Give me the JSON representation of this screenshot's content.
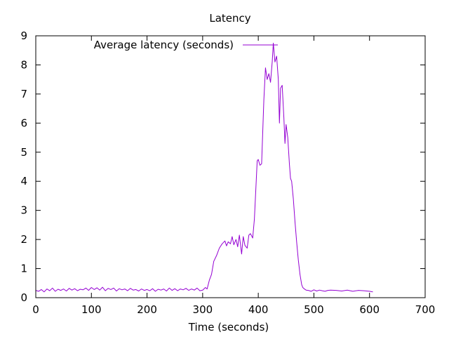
{
  "chart_data": {
    "type": "line",
    "title": "Latency",
    "xlabel": "Time (seconds)",
    "ylabel": "",
    "xlim": [
      0,
      700
    ],
    "ylim": [
      0,
      9
    ],
    "xticks": [
      0,
      100,
      200,
      300,
      400,
      500,
      600,
      700
    ],
    "yticks": [
      0,
      1,
      2,
      3,
      4,
      5,
      6,
      7,
      8,
      9
    ],
    "grid": false,
    "legend_position": "top-left",
    "series": [
      {
        "name": "Average latency (seconds)",
        "color": "#9400d3",
        "x": [
          0,
          5,
          10,
          15,
          20,
          25,
          30,
          35,
          40,
          45,
          50,
          55,
          60,
          65,
          70,
          75,
          80,
          85,
          90,
          95,
          100,
          105,
          110,
          115,
          120,
          125,
          130,
          135,
          140,
          145,
          150,
          155,
          160,
          165,
          170,
          175,
          180,
          185,
          190,
          195,
          200,
          205,
          210,
          215,
          220,
          225,
          230,
          235,
          240,
          245,
          250,
          255,
          260,
          265,
          270,
          275,
          280,
          285,
          290,
          295,
          300,
          305,
          308,
          312,
          316,
          320,
          325,
          330,
          335,
          340,
          343,
          346,
          350,
          353,
          356,
          360,
          363,
          366,
          370,
          373,
          376,
          380,
          383,
          386,
          390,
          393,
          396,
          398,
          400,
          403,
          406,
          410,
          413,
          416,
          419,
          422,
          425,
          427,
          430,
          433,
          436,
          438,
          440,
          443,
          446,
          448,
          450,
          453,
          456,
          458,
          460,
          463,
          466,
          469,
          472,
          475,
          478,
          480,
          483,
          486,
          490,
          495,
          500,
          505,
          510,
          515,
          520,
          525,
          530,
          540,
          550,
          560,
          570,
          580,
          590,
          600,
          606
        ],
        "y": [
          0.25,
          0.22,
          0.28,
          0.2,
          0.3,
          0.24,
          0.33,
          0.22,
          0.29,
          0.25,
          0.3,
          0.23,
          0.32,
          0.26,
          0.31,
          0.24,
          0.29,
          0.27,
          0.33,
          0.25,
          0.35,
          0.28,
          0.34,
          0.26,
          0.36,
          0.24,
          0.32,
          0.28,
          0.33,
          0.23,
          0.31,
          0.27,
          0.3,
          0.24,
          0.32,
          0.26,
          0.28,
          0.23,
          0.3,
          0.25,
          0.28,
          0.24,
          0.31,
          0.22,
          0.29,
          0.26,
          0.3,
          0.23,
          0.33,
          0.25,
          0.31,
          0.24,
          0.3,
          0.27,
          0.32,
          0.25,
          0.3,
          0.26,
          0.33,
          0.24,
          0.26,
          0.35,
          0.3,
          0.6,
          0.8,
          1.25,
          1.45,
          1.7,
          1.85,
          1.95,
          1.78,
          1.92,
          1.85,
          2.1,
          1.82,
          2.0,
          1.75,
          2.15,
          1.5,
          2.1,
          1.8,
          1.7,
          2.15,
          2.2,
          2.05,
          2.7,
          3.9,
          4.7,
          4.75,
          4.55,
          4.6,
          6.8,
          7.9,
          7.5,
          7.7,
          7.4,
          8.1,
          8.75,
          8.1,
          8.3,
          7.5,
          6.0,
          7.2,
          7.3,
          6.2,
          5.3,
          5.95,
          5.5,
          4.6,
          4.1,
          4.0,
          3.4,
          2.6,
          1.9,
          1.3,
          0.8,
          0.45,
          0.35,
          0.3,
          0.26,
          0.25,
          0.22,
          0.27,
          0.23,
          0.26,
          0.24,
          0.22,
          0.25,
          0.26,
          0.25,
          0.23,
          0.26,
          0.22,
          0.25,
          0.24,
          0.22,
          0.2
        ]
      }
    ]
  }
}
